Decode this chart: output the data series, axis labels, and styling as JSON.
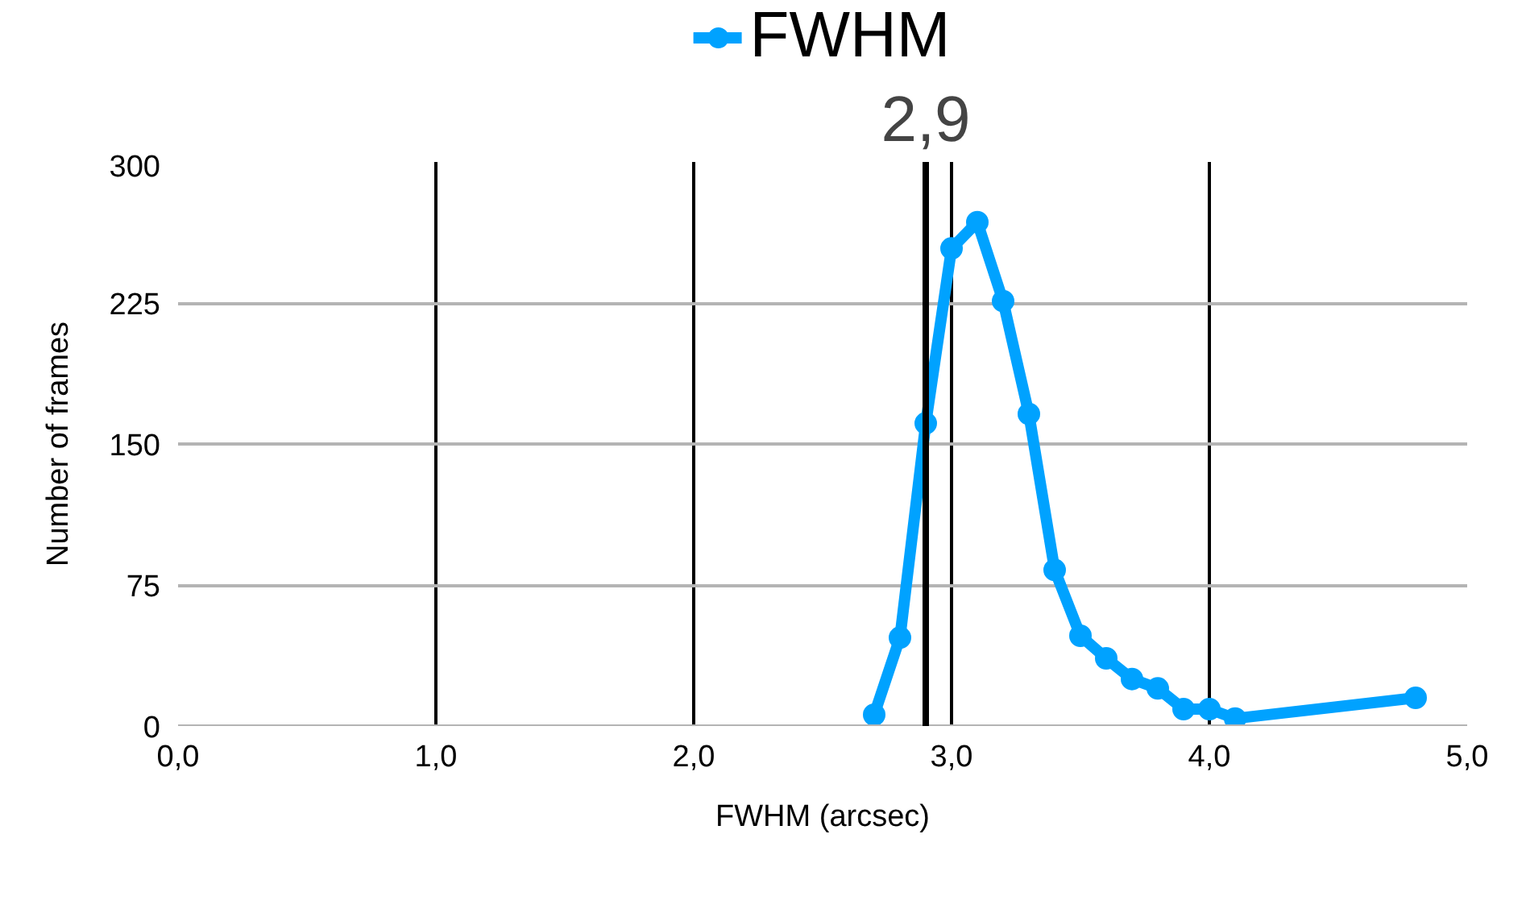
{
  "chart_data": {
    "type": "line",
    "xlabel": "FWHM (arcsec)",
    "ylabel": "Number of frames",
    "x": [
      2.7,
      2.8,
      2.9,
      3.0,
      3.1,
      3.2,
      3.3,
      3.4,
      3.5,
      3.6,
      3.7,
      3.8,
      3.9,
      4.0,
      4.1,
      4.8
    ],
    "series": [
      {
        "name": "FWHM",
        "color": "#00a2ff",
        "values": [
          6,
          47,
          161,
          254,
          268,
          226,
          166,
          83,
          48,
          36,
          25,
          20,
          9,
          9,
          4,
          15
        ]
      }
    ],
    "xlim": [
      0,
      5
    ],
    "xticks": [
      {
        "value": 0,
        "label": "0,0"
      },
      {
        "value": 1,
        "label": "1,0"
      },
      {
        "value": 2,
        "label": "2,0"
      },
      {
        "value": 3,
        "label": "3,0"
      },
      {
        "value": 4,
        "label": "4,0"
      },
      {
        "value": 5,
        "label": "5,0"
      }
    ],
    "ylim": [
      0,
      300
    ],
    "yticks": [
      0,
      75,
      150,
      225,
      300
    ],
    "ref_lines": [
      {
        "axis": "x",
        "value": 2.9,
        "label": "2,9",
        "color": "#000000"
      }
    ],
    "grid": true,
    "legend": "top",
    "marker": "circle",
    "line_style": "solid"
  }
}
